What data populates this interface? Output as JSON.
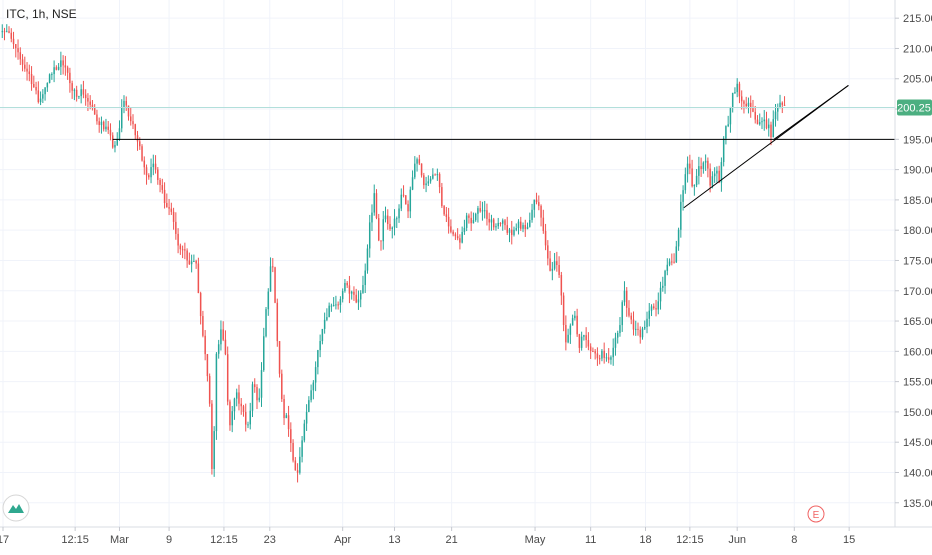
{
  "header": {
    "symbol_title": "ITC, 1h, NSE"
  },
  "colors": {
    "up": "#26a69a",
    "down": "#ef5350",
    "grid": "#f0f3fa",
    "axis_text": "#4a4a4a",
    "price_line": "#b2dfdb",
    "price_tag": "#4caf81",
    "drawing": "#000000",
    "earnings_marker": "#f06262"
  },
  "icons": {
    "logo": "tradingview-logo-icon",
    "earnings": "earnings-e-icon"
  },
  "earnings_marker": {
    "label": "E"
  },
  "chart_data": {
    "type": "candlestick",
    "title": "ITC, 1h, NSE",
    "ylim": [
      131,
      218
    ],
    "y_ticks": [
      135,
      140,
      145,
      150,
      155,
      160,
      165,
      170,
      175,
      180,
      185,
      190,
      195,
      200,
      205,
      210,
      215
    ],
    "y_tick_labels": [
      "135.00",
      "140.00",
      "145.00",
      "150.00",
      "155.00",
      "160.00",
      "165.00",
      "170.00",
      "175.00",
      "180.00",
      "185.00",
      "190.00",
      "195.00",
      "200.00",
      "205.00",
      "210.00",
      "215.00"
    ],
    "x_ticks": [
      {
        "label": "17",
        "bar": 4
      },
      {
        "label": "12:15",
        "bar": 100
      },
      {
        "label": "Mar",
        "bar": 159
      },
      {
        "label": "9",
        "bar": 225
      },
      {
        "label": "12:15",
        "bar": 298
      },
      {
        "label": "23",
        "bar": 359
      },
      {
        "label": "Apr",
        "bar": 456
      },
      {
        "label": "13",
        "bar": 525
      },
      {
        "label": "21",
        "bar": 601
      },
      {
        "label": "May",
        "bar": 712
      },
      {
        "label": "11",
        "bar": 786
      },
      {
        "label": "18",
        "bar": 859
      },
      {
        "label": "12:15",
        "bar": 918
      },
      {
        "label": "Jun",
        "bar": 981
      },
      {
        "label": "8",
        "bar": 1057
      },
      {
        "label": "15",
        "bar": 1130
      }
    ],
    "last_price": 200.25,
    "last_price_label": "200.25",
    "horizontal_level": 195,
    "trendlines": [
      {
        "from": {
          "bar": 910,
          "price": 183.7
        },
        "to": {
          "bar": 1129,
          "price": 203.9
        }
      },
      {
        "from": {
          "bar": 1030,
          "price": 195
        },
        "to": {
          "bar": 1129,
          "price": 203.9
        }
      }
    ],
    "bars_total": 1191,
    "waypoints": [
      [
        0,
        213.5
      ],
      [
        10,
        212.7
      ],
      [
        25,
        208.5
      ],
      [
        40,
        205.5
      ],
      [
        52,
        201.0
      ],
      [
        62,
        204.5
      ],
      [
        76,
        207.0
      ],
      [
        86,
        208.0
      ],
      [
        96,
        202.5
      ],
      [
        110,
        203.0
      ],
      [
        128,
        198.5
      ],
      [
        142,
        196.7
      ],
      [
        150,
        194.0
      ],
      [
        157,
        194.5
      ],
      [
        164,
        202.0
      ],
      [
        174,
        198.0
      ],
      [
        186,
        193.5
      ],
      [
        196,
        189.0
      ],
      [
        205,
        190.5
      ],
      [
        213,
        188.0
      ],
      [
        220,
        184.5
      ],
      [
        229,
        183.0
      ],
      [
        237,
        178.0
      ],
      [
        248,
        175.5
      ],
      [
        254,
        174.0
      ],
      [
        260,
        175.5
      ],
      [
        266,
        167.0
      ],
      [
        272,
        160.0
      ],
      [
        278,
        154.0
      ],
      [
        283,
        137.5
      ],
      [
        288,
        160.0
      ],
      [
        295,
        164.0
      ],
      [
        300,
        159.0
      ],
      [
        305,
        147.0
      ],
      [
        314,
        153.0
      ],
      [
        322,
        150.0
      ],
      [
        330,
        147.5
      ],
      [
        337,
        155.0
      ],
      [
        344,
        150.5
      ],
      [
        352,
        164.0
      ],
      [
        357,
        170.0
      ],
      [
        362,
        176.0
      ],
      [
        370,
        159.0
      ],
      [
        376,
        150.0
      ],
      [
        383,
        148.5
      ],
      [
        390,
        142.0
      ],
      [
        396,
        140.0
      ],
      [
        403,
        146.0
      ],
      [
        410,
        151.0
      ],
      [
        418,
        156.0
      ],
      [
        428,
        164.0
      ],
      [
        440,
        168.0
      ],
      [
        452,
        168.0
      ],
      [
        460,
        171.0
      ],
      [
        470,
        169.0
      ],
      [
        478,
        168.0
      ],
      [
        485,
        172.0
      ],
      [
        492,
        181.0
      ],
      [
        498,
        185.5
      ],
      [
        505,
        177.0
      ],
      [
        512,
        183.0
      ],
      [
        520,
        180.0
      ],
      [
        527,
        182.0
      ],
      [
        535,
        186.0
      ],
      [
        543,
        183.0
      ],
      [
        550,
        190.0
      ],
      [
        556,
        192.0
      ],
      [
        563,
        187.0
      ],
      [
        572,
        188.0
      ],
      [
        580,
        190.0
      ],
      [
        590,
        183.0
      ],
      [
        600,
        180.0
      ],
      [
        612,
        178.0
      ],
      [
        620,
        182.0
      ],
      [
        630,
        181.5
      ],
      [
        640,
        184.0
      ],
      [
        650,
        182.0
      ],
      [
        660,
        180.5
      ],
      [
        670,
        181.0
      ],
      [
        680,
        179.0
      ],
      [
        690,
        181.5
      ],
      [
        700,
        179.5
      ],
      [
        710,
        185.0
      ],
      [
        716,
        184.0
      ],
      [
        722,
        181.0
      ],
      [
        728,
        175.0
      ],
      [
        734,
        173.0
      ],
      [
        740,
        175.0
      ],
      [
        746,
        171.0
      ],
      [
        752,
        162.0
      ],
      [
        758,
        163.0
      ],
      [
        764,
        167.0
      ],
      [
        770,
        161.0
      ],
      [
        778,
        163.0
      ],
      [
        786,
        160.5
      ],
      [
        794,
        159.0
      ],
      [
        802,
        160.0
      ],
      [
        810,
        158.0
      ],
      [
        818,
        162.0
      ],
      [
        826,
        164.0
      ],
      [
        830,
        171.0
      ],
      [
        836,
        166.0
      ],
      [
        844,
        163.5
      ],
      [
        852,
        163.0
      ],
      [
        860,
        165.0
      ],
      [
        866,
        167.0
      ],
      [
        872,
        166.5
      ],
      [
        878,
        170.0
      ],
      [
        886,
        173.0
      ],
      [
        892,
        175.0
      ],
      [
        898,
        174.5
      ],
      [
        904,
        182.0
      ],
      [
        910,
        188.0
      ],
      [
        916,
        191.0
      ],
      [
        922,
        187.0
      ],
      [
        930,
        190.0
      ],
      [
        938,
        192.0
      ],
      [
        945,
        188.0
      ],
      [
        952,
        190.0
      ],
      [
        958,
        188.0
      ],
      [
        964,
        196.0
      ],
      [
        970,
        198.0
      ],
      [
        976,
        203.0
      ],
      [
        982,
        204.0
      ],
      [
        988,
        200.0
      ],
      [
        995,
        201.0
      ],
      [
        1002,
        199.0
      ],
      [
        1010,
        197.5
      ],
      [
        1018,
        198.0
      ],
      [
        1026,
        196.0
      ],
      [
        1034,
        200.5
      ],
      [
        1040,
        201.5
      ],
      [
        1046,
        200.5
      ]
    ]
  }
}
